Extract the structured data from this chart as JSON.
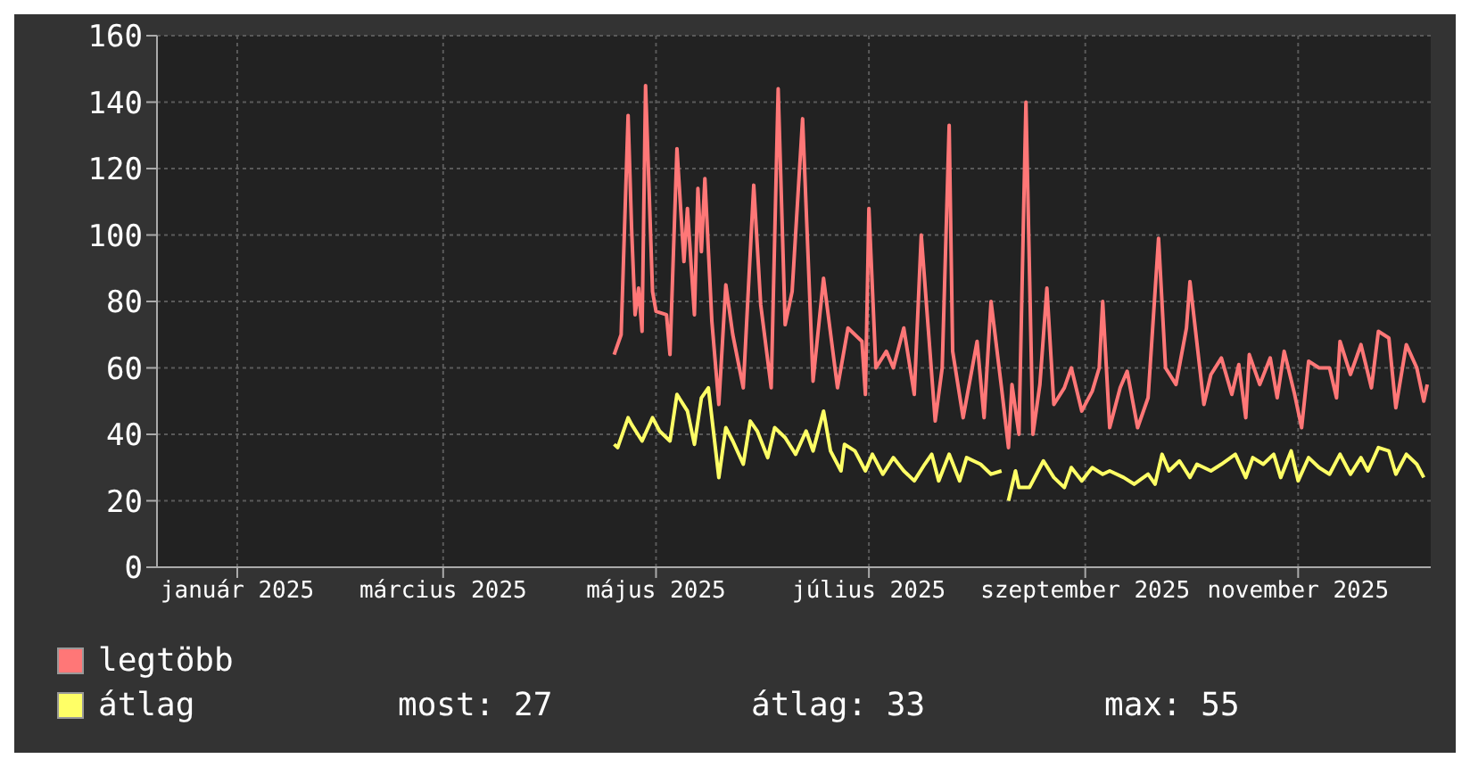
{
  "chart_data": {
    "type": "line",
    "xlim": [
      "2024-12-09",
      "2025-12-09"
    ],
    "ylim": [
      0,
      160
    ],
    "yticks": [
      0,
      20,
      40,
      60,
      80,
      100,
      120,
      140,
      160
    ],
    "xticks": [
      {
        "value": "2025-01-01",
        "label": "január 2025"
      },
      {
        "value": "2025-03-01",
        "label": "március 2025"
      },
      {
        "value": "2025-05-01",
        "label": "május 2025"
      },
      {
        "value": "2025-07-01",
        "label": "július 2025"
      },
      {
        "value": "2025-09-01",
        "label": "szeptember 2025"
      },
      {
        "value": "2025-11-01",
        "label": "november 2025"
      }
    ],
    "grid": true,
    "legend": "bottom left",
    "line_style": "solid",
    "annotations": [
      "most: 27",
      "átlag: 33",
      "max: 55"
    ],
    "series": [
      {
        "name": "legtöbb",
        "color": "#ff7777",
        "x": [
          "2025-04-19",
          "2025-04-21",
          "2025-04-23",
          "2025-04-24",
          "2025-04-25",
          "2025-04-26",
          "2025-04-27",
          "2025-04-28",
          "2025-04-30",
          "2025-05-01",
          "2025-05-04",
          "2025-05-05",
          "2025-05-07",
          "2025-05-09",
          "2025-05-10",
          "2025-05-12",
          "2025-05-13",
          "2025-05-14",
          "2025-05-15",
          "2025-05-17",
          "2025-05-19",
          "2025-05-21",
          "2025-05-23",
          "2025-05-26",
          "2025-05-29",
          "2025-05-31",
          "2025-06-03",
          "2025-06-05",
          "2025-06-07",
          "2025-06-09",
          "2025-06-12",
          "2025-06-15",
          "2025-06-18",
          "2025-06-22",
          "2025-06-25",
          "2025-06-29",
          "2025-06-30",
          "2025-07-01",
          "2025-07-03",
          "2025-07-06",
          "2025-07-08",
          "2025-07-11",
          "2025-07-14",
          "2025-07-16",
          "2025-07-18",
          "2025-07-20",
          "2025-07-22",
          "2025-07-24",
          "2025-07-25",
          "2025-07-28",
          "2025-08-01",
          "2025-08-03",
          "2025-08-05",
          "2025-08-08",
          "2025-08-10",
          "2025-08-11",
          "2025-08-13",
          "2025-08-15",
          "2025-08-17",
          "2025-08-19",
          "2025-08-21",
          "2025-08-23",
          "2025-08-26",
          "2025-08-28",
          "2025-08-31",
          "2025-09-03",
          "2025-09-05",
          "2025-09-06",
          "2025-09-08",
          "2025-09-11",
          "2025-09-13",
          "2025-09-16",
          "2025-09-19",
          "2025-09-22",
          "2025-09-24",
          "2025-09-27",
          "2025-09-30",
          "2025-10-01",
          "2025-10-05",
          "2025-10-07",
          "2025-10-10",
          "2025-10-13",
          "2025-10-15",
          "2025-10-17",
          "2025-10-18",
          "2025-10-21",
          "2025-10-24",
          "2025-10-26",
          "2025-10-28",
          "2025-10-31",
          "2025-11-02",
          "2025-11-04",
          "2025-11-07",
          "2025-11-10",
          "2025-11-12",
          "2025-11-13",
          "2025-11-16",
          "2025-11-19",
          "2025-11-22",
          "2025-11-24",
          "2025-11-27",
          "2025-11-29",
          "2025-12-02",
          "2025-12-05",
          "2025-12-07",
          "2025-12-08"
        ],
        "values": [
          64,
          70,
          136,
          102,
          76,
          84,
          71,
          145,
          83,
          77,
          76,
          64,
          126,
          92,
          108,
          76,
          114,
          95,
          117,
          74,
          49,
          85,
          70,
          54,
          115,
          79,
          54,
          144,
          73,
          83,
          135,
          56,
          87,
          54,
          72,
          68,
          52,
          108,
          60,
          65,
          60,
          72,
          52,
          100,
          72,
          44,
          60,
          133,
          65,
          45,
          68,
          45,
          80,
          54,
          36,
          55,
          40,
          140,
          40,
          55,
          84,
          49,
          54,
          60,
          47,
          53,
          60,
          80,
          42,
          54,
          59,
          42,
          51,
          99,
          60,
          55,
          72,
          86,
          49,
          58,
          63,
          52,
          61,
          45,
          64,
          55,
          63,
          51,
          65,
          52,
          42,
          62,
          60,
          60,
          51,
          68,
          58,
          67,
          54,
          71,
          69,
          48,
          67,
          60,
          50,
          55
        ]
      },
      {
        "name": "átlag",
        "color": "#ffff66",
        "x": [
          "2025-04-19",
          "2025-04-20",
          "2025-04-23",
          "2025-04-24",
          "2025-04-27",
          "2025-04-30",
          "2025-05-02",
          "2025-05-05",
          "2025-05-07",
          "2025-05-10",
          "2025-05-12",
          "2025-05-14",
          "2025-05-16",
          "2025-05-19",
          "2025-05-21",
          "2025-05-23",
          "2025-05-26",
          "2025-05-28",
          "2025-05-30",
          "2025-06-02",
          "2025-06-04",
          "2025-06-07",
          "2025-06-10",
          "2025-06-13",
          "2025-06-15",
          "2025-06-18",
          "2025-06-20",
          "2025-06-23",
          "2025-06-24",
          "2025-06-27",
          "2025-06-30",
          "2025-07-02",
          "2025-07-05",
          "2025-07-08",
          "2025-07-11",
          "2025-07-14",
          "2025-07-17",
          "2025-07-19",
          "2025-07-21",
          "2025-07-24",
          "2025-07-27",
          "2025-07-29",
          "2025-08-02",
          "2025-08-05",
          "2025-08-08",
          "2025-08-09",
          "2025-08-10",
          "2025-08-12",
          "2025-08-13",
          "2025-08-16",
          "2025-08-18",
          "2025-08-20",
          "2025-08-23",
          "2025-08-26",
          "2025-08-28",
          "2025-08-31",
          "2025-09-03",
          "2025-09-06",
          "2025-09-08",
          "2025-09-12",
          "2025-09-15",
          "2025-09-19",
          "2025-09-21",
          "2025-09-23",
          "2025-09-25",
          "2025-09-28",
          "2025-10-01",
          "2025-10-03",
          "2025-10-07",
          "2025-10-10",
          "2025-10-14",
          "2025-10-17",
          "2025-10-19",
          "2025-10-22",
          "2025-10-25",
          "2025-10-27",
          "2025-10-30",
          "2025-11-01",
          "2025-11-04",
          "2025-11-07",
          "2025-11-10",
          "2025-11-13",
          "2025-11-16",
          "2025-11-19",
          "2025-11-21",
          "2025-11-24",
          "2025-11-27",
          "2025-11-29",
          "2025-12-02",
          "2025-12-05",
          "2025-12-07"
        ],
        "values": [
          37,
          36,
          45,
          43,
          38,
          45,
          41,
          38,
          52,
          47,
          37,
          51,
          54,
          27,
          42,
          38,
          31,
          44,
          41,
          33,
          42,
          39,
          34,
          41,
          35,
          47,
          35,
          29,
          37,
          35,
          29,
          34,
          28,
          33,
          29,
          26,
          31,
          34,
          26,
          34,
          26,
          33,
          31,
          28,
          29,
          null,
          20,
          29,
          24,
          24,
          28,
          32,
          27,
          24,
          30,
          26,
          30,
          28,
          29,
          27,
          25,
          28,
          25,
          34,
          29,
          32,
          27,
          31,
          29,
          31,
          34,
          27,
          33,
          31,
          34,
          27,
          35,
          26,
          33,
          30,
          28,
          34,
          28,
          33,
          29,
          36,
          35,
          28,
          34,
          31,
          27
        ]
      }
    ]
  }
}
